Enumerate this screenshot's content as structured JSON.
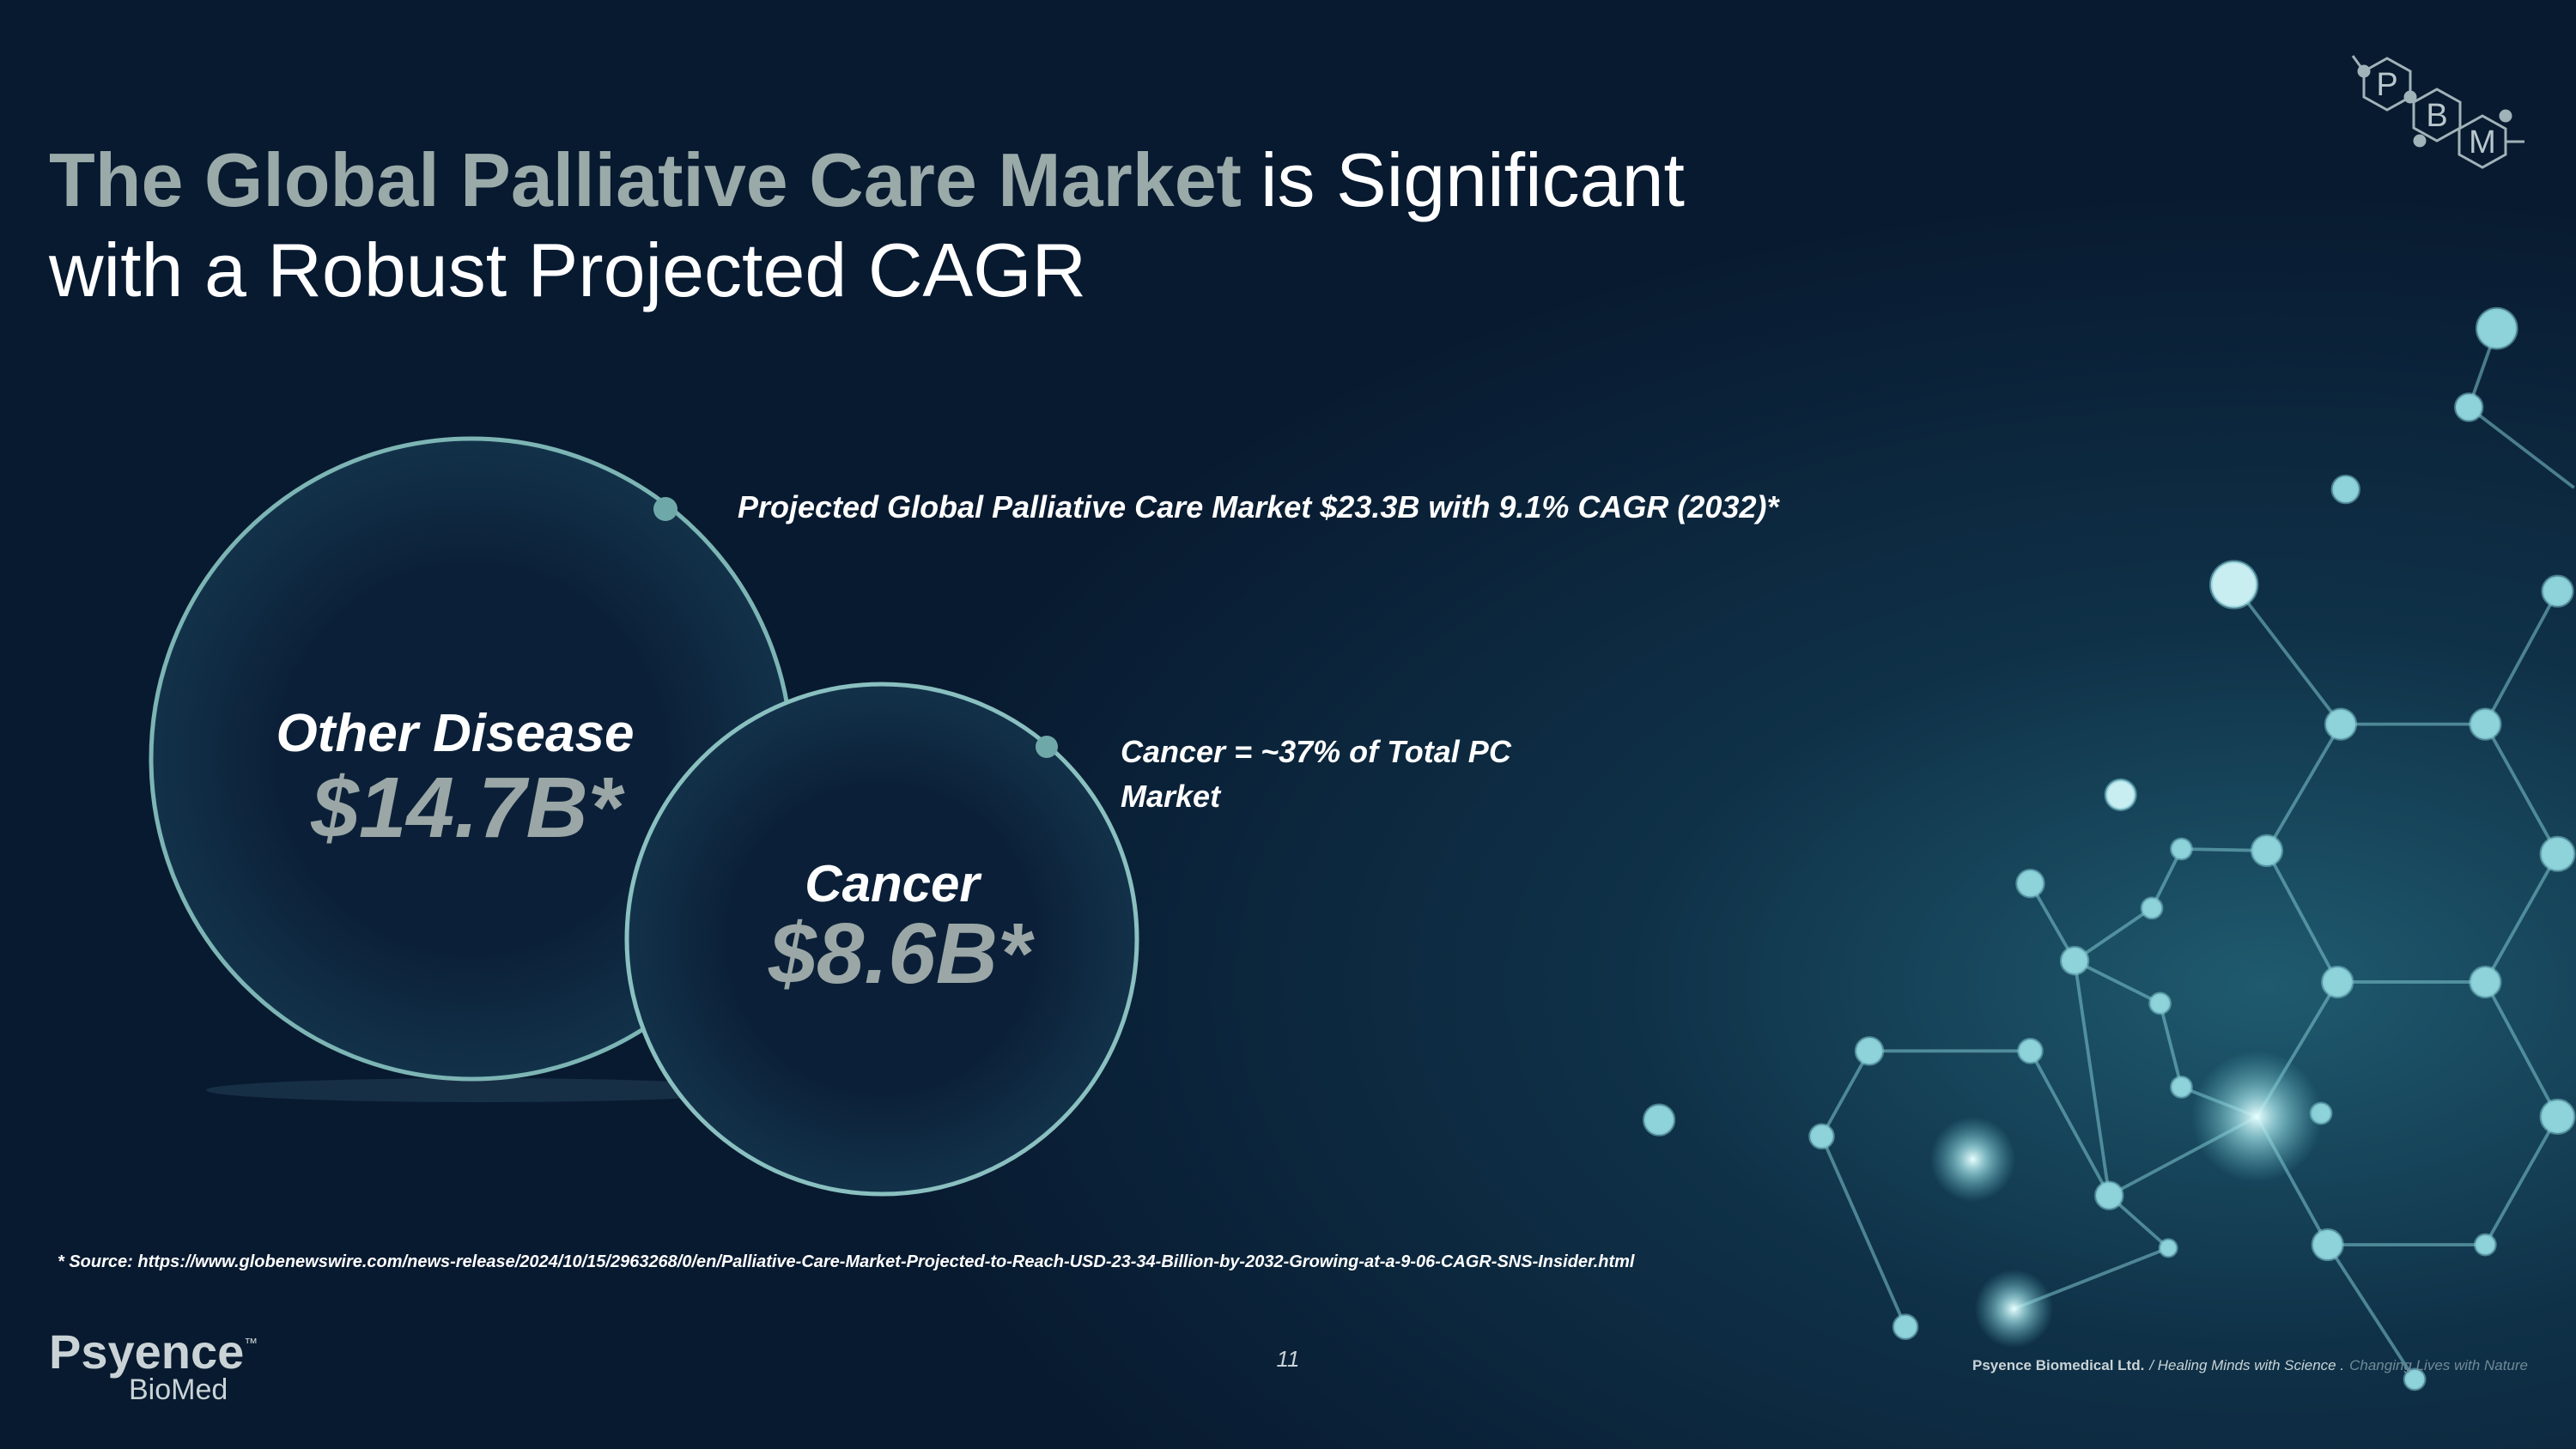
{
  "header": {
    "title_highlight": "The Global Palliative Care Market",
    "title_rest": "is Significant",
    "title_line2": "with a Robust Projected CAGR"
  },
  "logo_top": {
    "letters": [
      "P",
      "B",
      "M"
    ]
  },
  "bubbles": [
    {
      "label": "Other Disease",
      "value": "$14.7B*"
    },
    {
      "label": "Cancer",
      "value": "$8.6B*"
    }
  ],
  "annotations": [
    "Projected Global Palliative Care Market $23.3B with 9.1% CAGR (2032)*",
    "Cancer = ~37% of Total PC",
    "Market"
  ],
  "source": "* Source: https://www.globenewswire.com/news-release/2024/10/15/2963268/0/en/Palliative-Care-Market-Projected-to-Reach-USD-23-34-Billion-by-2032-Growing-at-a-9-06-CAGR-SNS-Insider.html",
  "page_number": "11",
  "footer": {
    "brand": "Psyence",
    "tm": "™",
    "brand_sub": "BioMed",
    "company": "Psyence Biomedical Ltd.",
    "tagline": "/ Healing Minds with Science .",
    "tagline2": "Changing Lives with Nature"
  }
}
